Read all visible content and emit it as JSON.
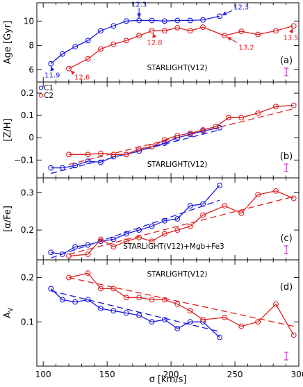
{
  "chart_data": [
    {
      "type": "line",
      "panel_label": "(a)",
      "text": "STARLIGHT(V12)",
      "ylabel": "Age [Gyr]",
      "ylim": [
        5,
        11.5
      ],
      "yticks": [
        6,
        8,
        10
      ],
      "ytick_labels": [
        "6",
        "8",
        "10"
      ],
      "series": [
        {
          "color": "#1a1adf",
          "x": [
            106,
            115,
            125,
            135,
            145,
            155,
            165,
            175,
            185,
            195,
            205,
            215,
            225,
            238
          ],
          "y": [
            6.5,
            7.3,
            7.9,
            8.4,
            9.2,
            9.6,
            10.0,
            10.05,
            10.05,
            10.0,
            10.05,
            10.05,
            10.1,
            10.4
          ]
        },
        {
          "color": "#e02020",
          "x": [
            120,
            135,
            145,
            155,
            165,
            175,
            185,
            195,
            205,
            215,
            225,
            242,
            255,
            268,
            282,
            296
          ],
          "y": [
            6.1,
            6.9,
            7.7,
            8.1,
            8.4,
            8.8,
            9.2,
            9.2,
            9.45,
            9.2,
            9.5,
            8.8,
            9.15,
            8.9,
            9.2,
            9.6
          ]
        }
      ],
      "annotations": [
        {
          "text": "11.9",
          "color": "#1a1adf",
          "x": 106,
          "y": 6.5
        },
        {
          "text": "12.3",
          "color": "#1a1adf",
          "x": 175,
          "y": 10.05
        },
        {
          "text": "12.3",
          "color": "#1a1adf",
          "x": 238,
          "y": 10.4
        },
        {
          "text": "12.6",
          "color": "#e02020",
          "x": 120,
          "y": 6.1
        },
        {
          "text": "12.8",
          "color": "#e02020",
          "x": 185,
          "y": 9.2
        },
        {
          "text": "13.2",
          "color": "#e02020",
          "x": 242,
          "y": 8.8
        },
        {
          "text": "13.5",
          "color": "#e02020",
          "x": 296,
          "y": 9.6
        }
      ]
    },
    {
      "type": "line",
      "panel_label": "(b)",
      "text": "STARLIGHT(V12)",
      "ylabel": "[Z/H]",
      "ylim": [
        -0.18,
        0.25
      ],
      "yticks": [
        -0.1,
        0,
        0.1,
        0.2
      ],
      "ytick_labels": [
        "−0.1",
        "0",
        "0.1",
        "0.2"
      ],
      "legend": [
        "C1",
        "C2"
      ],
      "series": [
        {
          "name": "C1",
          "color": "#1a1adf",
          "x": [
            106,
            115,
            125,
            135,
            145,
            155,
            165,
            175,
            185,
            195,
            205,
            215,
            225,
            238
          ],
          "y": [
            -0.135,
            -0.135,
            -0.125,
            -0.105,
            -0.11,
            -0.085,
            -0.075,
            -0.06,
            -0.04,
            -0.025,
            0.0,
            0.015,
            0.03,
            0.045
          ]
        },
        {
          "name": "C2",
          "color": "#e02020",
          "x": [
            120,
            135,
            145,
            155,
            165,
            175,
            185,
            195,
            205,
            215,
            225,
            235,
            245,
            255,
            268,
            282,
            296
          ],
          "y": [
            -0.075,
            -0.075,
            -0.07,
            -0.075,
            -0.075,
            -0.05,
            -0.04,
            -0.01,
            0.01,
            0.02,
            0.035,
            0.05,
            0.09,
            0.09,
            0.11,
            0.14,
            0.145
          ]
        }
      ],
      "fits": [
        {
          "color": "#1a1adf",
          "x": [
            106,
            238
          ],
          "y": [
            -0.16,
            0.035
          ]
        },
        {
          "color": "#e02020",
          "x": [
            120,
            296
          ],
          "y": [
            -0.12,
            0.13
          ]
        }
      ]
    },
    {
      "type": "line",
      "panel_label": "(c)",
      "text": "STARLIGHT(V12)+Mgb+Fe3",
      "ylabel": "[α/Fe]",
      "ylim": [
        0.12,
        0.34
      ],
      "yticks": [
        0.2,
        0.3
      ],
      "ytick_labels": [
        "0.2",
        "0.3"
      ],
      "series": [
        {
          "color": "#1a1adf",
          "x": [
            106,
            115,
            125,
            135,
            145,
            155,
            165,
            175,
            185,
            195,
            205,
            215,
            225,
            238
          ],
          "y": [
            0.14,
            0.135,
            0.155,
            0.16,
            0.17,
            0.175,
            0.19,
            0.2,
            0.21,
            0.225,
            0.23,
            0.265,
            0.27,
            0.32
          ]
        },
        {
          "color": "#e02020",
          "x": [
            120,
            135,
            145,
            155,
            165,
            175,
            185,
            195,
            205,
            215,
            225,
            242,
            255,
            268,
            282,
            296
          ],
          "y": [
            0.13,
            0.135,
            0.175,
            0.155,
            0.17,
            0.18,
            0.17,
            0.19,
            0.2,
            0.21,
            0.24,
            0.265,
            0.245,
            0.295,
            0.305,
            0.285
          ]
        }
      ],
      "fits": [
        {
          "color": "#1a1adf",
          "x": [
            106,
            238
          ],
          "y": [
            0.125,
            0.28
          ]
        },
        {
          "color": "#e02020",
          "x": [
            120,
            296
          ],
          "y": [
            0.135,
            0.29
          ]
        }
      ]
    },
    {
      "type": "line",
      "panel_label": "(d)",
      "text": "STARLIGHT(V12)",
      "ylabel": "A_V",
      "ylim": [
        0.0,
        0.24
      ],
      "yticks": [
        0.1,
        0.2
      ],
      "ytick_labels": [
        "0.1",
        "0.2"
      ],
      "xlabel": "σ [km/s]",
      "xlim": [
        95,
        300
      ],
      "xticks": [
        100,
        150,
        200,
        250,
        300
      ],
      "xtick_labels": [
        "100",
        "150",
        "200",
        "250",
        "300"
      ],
      "series": [
        {
          "color": "#1a1adf",
          "x": [
            106,
            115,
            125,
            135,
            145,
            155,
            165,
            175,
            185,
            195,
            205,
            215,
            225,
            238
          ],
          "y": [
            0.175,
            0.15,
            0.145,
            0.15,
            0.13,
            0.125,
            0.12,
            0.115,
            0.1,
            0.105,
            0.085,
            0.1,
            0.1,
            0.065
          ]
        },
        {
          "color": "#e02020",
          "x": [
            120,
            135,
            145,
            155,
            165,
            175,
            185,
            195,
            205,
            215,
            225,
            242,
            255,
            268,
            282,
            296
          ],
          "y": [
            0.2,
            0.21,
            0.175,
            0.175,
            0.155,
            0.155,
            0.15,
            0.15,
            0.14,
            0.125,
            0.105,
            0.11,
            0.09,
            0.1,
            0.14,
            0.07
          ]
        }
      ],
      "fits": [
        {
          "color": "#1a1adf",
          "x": [
            106,
            238
          ],
          "y": [
            0.17,
            0.078
          ]
        },
        {
          "color": "#e02020",
          "x": [
            120,
            296
          ],
          "y": [
            0.2,
            0.09
          ]
        }
      ]
    }
  ]
}
